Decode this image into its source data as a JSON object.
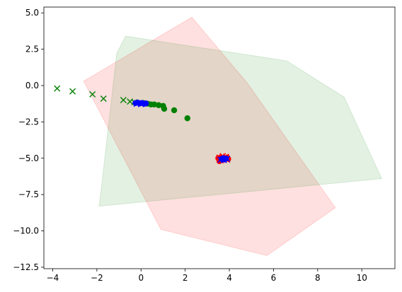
{
  "chart_data": {
    "type": "scatter",
    "xlim": [
      -4.4,
      11.5
    ],
    "ylim": [
      -12.6,
      5.4
    ],
    "x_ticks": [
      -4,
      -2,
      0,
      2,
      4,
      6,
      8,
      10
    ],
    "y_ticks": [
      5.0,
      2.5,
      0.0,
      -2.5,
      -5.0,
      -7.5,
      -10.0,
      -12.5
    ],
    "x_tick_labels": [
      "−4",
      "−2",
      "0",
      "2",
      "4",
      "6",
      "8",
      "10"
    ],
    "y_tick_labels": [
      "5.0",
      "2.5",
      "0.0",
      "−2.5",
      "−5.0",
      "−7.5",
      "−10.0",
      "−12.5"
    ],
    "grid": false,
    "polygons": [
      {
        "color": "#ff0000",
        "opacity": 0.12,
        "points": [
          [
            -2.6,
            0.3
          ],
          [
            2.3,
            4.7
          ],
          [
            4.8,
            0.2
          ],
          [
            8.8,
            -8.4
          ],
          [
            5.7,
            -11.7
          ],
          [
            0.9,
            -9.9
          ]
        ]
      },
      {
        "color": "#008000",
        "opacity": 0.11,
        "points": [
          [
            -0.7,
            3.4
          ],
          [
            6.6,
            1.7
          ],
          [
            9.2,
            -0.8
          ],
          [
            10.9,
            -6.4
          ],
          [
            -1.9,
            -8.3
          ],
          [
            -1.8,
            -7.1
          ],
          [
            -1.1,
            2.2
          ]
        ]
      }
    ],
    "series": [
      {
        "marker": "x",
        "color": "#008000",
        "points": [
          [
            -3.8,
            -0.2
          ],
          [
            -3.1,
            -0.4
          ],
          [
            -2.2,
            -0.6
          ],
          [
            -1.7,
            -0.9
          ],
          [
            -0.8,
            -1.0
          ],
          [
            -0.5,
            -1.1
          ],
          [
            -0.3,
            -1.15
          ]
        ]
      },
      {
        "marker": "o",
        "color": "#008000",
        "points": [
          [
            0.1,
            -1.2
          ],
          [
            0.3,
            -1.25
          ],
          [
            0.45,
            -1.3
          ],
          [
            0.6,
            -1.3
          ],
          [
            0.8,
            -1.35
          ],
          [
            1.0,
            -1.4
          ],
          [
            1.05,
            -1.6
          ],
          [
            1.5,
            -1.7
          ],
          [
            2.1,
            -2.25
          ]
        ]
      },
      {
        "marker": "o",
        "color": "#0000ff",
        "points": [
          [
            -0.25,
            -1.2
          ],
          [
            -0.15,
            -1.18
          ],
          [
            -0.05,
            -1.22
          ],
          [
            0.05,
            -1.2
          ],
          [
            0.15,
            -1.25
          ],
          [
            0.22,
            -1.23
          ]
        ]
      },
      {
        "marker": "x",
        "color": "#0000ff",
        "points": [
          [
            -0.2,
            -1.25
          ],
          [
            0.0,
            -1.28
          ],
          [
            0.1,
            -1.22
          ]
        ]
      },
      {
        "marker": "o",
        "color": "#ff0000",
        "points": [
          [
            3.5,
            -5.0
          ],
          [
            3.55,
            -5.2
          ],
          [
            3.6,
            -4.95
          ],
          [
            3.7,
            -5.1
          ],
          [
            3.8,
            -5.0
          ],
          [
            3.9,
            -4.95
          ],
          [
            3.95,
            -5.05
          ]
        ]
      },
      {
        "marker": "x",
        "color": "#ff0000",
        "points": [
          [
            3.55,
            -4.95
          ],
          [
            3.7,
            -4.85
          ],
          [
            3.85,
            -4.9
          ],
          [
            3.6,
            -5.15
          ],
          [
            3.9,
            -5.1
          ]
        ]
      },
      {
        "marker": "o",
        "color": "#0000ff",
        "points": [
          [
            3.65,
            -5.05
          ],
          [
            3.72,
            -5.0
          ],
          [
            3.78,
            -5.08
          ],
          [
            3.85,
            -5.02
          ]
        ]
      },
      {
        "marker": "x",
        "color": "#0000ff",
        "points": [
          [
            3.6,
            -5.1
          ],
          [
            3.75,
            -5.12
          ],
          [
            3.9,
            -5.05
          ]
        ]
      }
    ]
  }
}
